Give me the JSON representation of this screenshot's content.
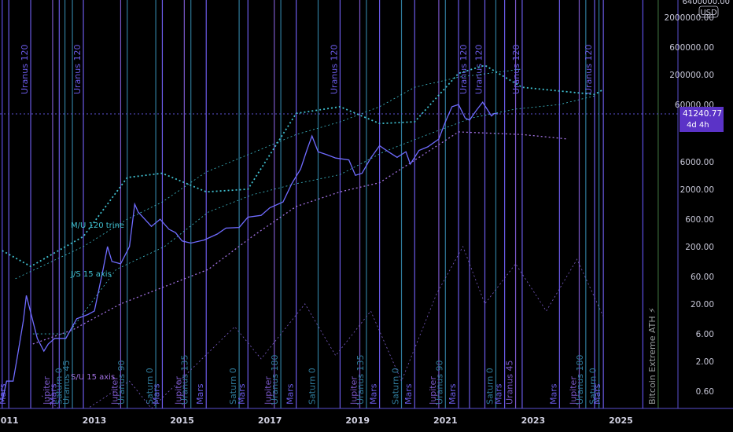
{
  "chart_data": {
    "type": "line",
    "title": "",
    "yscale": "log",
    "currency": "USD",
    "top_tick": "6400000.00",
    "ylim": [
      0.3,
      4000000
    ],
    "xlim": [
      2010.85,
      2026.3
    ],
    "x_ticks": [
      {
        "label": "2011",
        "x": 2011.0
      },
      {
        "label": "2013",
        "x": 2013.0
      },
      {
        "label": "2015",
        "x": 2015.0
      },
      {
        "label": "2017",
        "x": 2017.0
      },
      {
        "label": "2019",
        "x": 2019.0
      },
      {
        "label": "2021",
        "x": 2021.0
      },
      {
        "label": "2023",
        "x": 2023.0
      },
      {
        "label": "2025",
        "x": 2025.0
      }
    ],
    "y_ticks": [
      {
        "label": "2000000.00",
        "v": 2000000
      },
      {
        "label": "600000.00",
        "v": 600000
      },
      {
        "label": "200000.00",
        "v": 200000
      },
      {
        "label": "60000.00",
        "v": 60000
      },
      {
        "label": "6000.00",
        "v": 6000
      },
      {
        "label": "2000.00",
        "v": 2000
      },
      {
        "label": "600.00",
        "v": 600
      },
      {
        "label": "200.00",
        "v": 200
      },
      {
        "label": "60.00",
        "v": 60
      },
      {
        "label": "20.00",
        "v": 20
      },
      {
        "label": "6.00",
        "v": 6
      },
      {
        "label": "2.00",
        "v": 2
      },
      {
        "label": "0.60",
        "v": 0.6
      }
    ],
    "last_price": {
      "value": 41240.77,
      "label": "41240.77",
      "sublabel": "4d 4h"
    },
    "price": [
      [
        2010.9,
        0.4
      ],
      [
        2011.0,
        0.9
      ],
      [
        2011.15,
        0.9
      ],
      [
        2011.25,
        2.5
      ],
      [
        2011.38,
        10
      ],
      [
        2011.45,
        28
      ],
      [
        2011.55,
        14
      ],
      [
        2011.7,
        5
      ],
      [
        2011.85,
        3
      ],
      [
        2011.95,
        4
      ],
      [
        2012.1,
        5
      ],
      [
        2012.35,
        5
      ],
      [
        2012.6,
        11
      ],
      [
        2012.85,
        13
      ],
      [
        2013.0,
        15
      ],
      [
        2013.2,
        80
      ],
      [
        2013.3,
        200
      ],
      [
        2013.4,
        110
      ],
      [
        2013.6,
        100
      ],
      [
        2013.8,
        200
      ],
      [
        2013.92,
        1100
      ],
      [
        2014.0,
        800
      ],
      [
        2014.15,
        600
      ],
      [
        2014.3,
        450
      ],
      [
        2014.5,
        600
      ],
      [
        2014.7,
        400
      ],
      [
        2014.85,
        350
      ],
      [
        2015.0,
        250
      ],
      [
        2015.2,
        230
      ],
      [
        2015.5,
        260
      ],
      [
        2015.8,
        330
      ],
      [
        2016.0,
        420
      ],
      [
        2016.3,
        430
      ],
      [
        2016.5,
        650
      ],
      [
        2016.8,
        700
      ],
      [
        2017.0,
        950
      ],
      [
        2017.3,
        1200
      ],
      [
        2017.5,
        2500
      ],
      [
        2017.7,
        4500
      ],
      [
        2017.85,
        10000
      ],
      [
        2017.96,
        17000
      ],
      [
        2018.1,
        9000
      ],
      [
        2018.3,
        8000
      ],
      [
        2018.5,
        7000
      ],
      [
        2018.8,
        6500
      ],
      [
        2018.95,
        3500
      ],
      [
        2019.1,
        3800
      ],
      [
        2019.3,
        7000
      ],
      [
        2019.5,
        11500
      ],
      [
        2019.7,
        9000
      ],
      [
        2019.9,
        7200
      ],
      [
        2020.1,
        9000
      ],
      [
        2020.2,
        5500
      ],
      [
        2020.4,
        9500
      ],
      [
        2020.6,
        11000
      ],
      [
        2020.85,
        15000
      ],
      [
        2021.0,
        30000
      ],
      [
        2021.15,
        55000
      ],
      [
        2021.3,
        60000
      ],
      [
        2021.45,
        35000
      ],
      [
        2021.55,
        32000
      ],
      [
        2021.7,
        47000
      ],
      [
        2021.85,
        66000
      ],
      [
        2021.95,
        50000
      ],
      [
        2022.05,
        38000
      ],
      [
        2022.12,
        42000
      ],
      [
        2022.2,
        41240.77
      ]
    ],
    "vertical_lines": [
      {
        "x": 2010.9,
        "label": "",
        "color": "#5d4fe6"
      },
      {
        "x": 2011.05,
        "label": "Mars",
        "color": "#6a5ae6"
      },
      {
        "x": 2011.55,
        "label": "Uranus 120",
        "color": "#6a5ae6"
      },
      {
        "x": 2012.05,
        "label": "Jupiter",
        "color": "#7a57c8"
      },
      {
        "x": 2012.2,
        "label": "Mars",
        "color": "#6a5ae6"
      },
      {
        "x": 2012.33,
        "label": "Saturn 0",
        "color": "#2f7a9a"
      },
      {
        "x": 2012.5,
        "label": "Uranus 45",
        "color": "#2f7a9a"
      },
      {
        "x": 2012.75,
        "label": "Uranus 120",
        "color": "#6a5ae6"
      },
      {
        "x": 2013.6,
        "label": "Jupiter",
        "color": "#7a57c8"
      },
      {
        "x": 2013.75,
        "label": "Uranus 90",
        "color": "#2f7a9a"
      },
      {
        "x": 2014.4,
        "label": "Saturn 0",
        "color": "#2f7a9a"
      },
      {
        "x": 2014.55,
        "label": "Mars",
        "color": "#6a5ae6"
      },
      {
        "x": 2015.05,
        "label": "Jupiter",
        "color": "#7a57c8"
      },
      {
        "x": 2015.2,
        "label": "Uranus 135",
        "color": "#2f7a9a"
      },
      {
        "x": 2015.55,
        "label": "Mars",
        "color": "#6a5ae6"
      },
      {
        "x": 2016.3,
        "label": "Saturn 0",
        "color": "#2f7a9a"
      },
      {
        "x": 2016.5,
        "label": "Mars",
        "color": "#6a5ae6"
      },
      {
        "x": 2017.1,
        "label": "Jupiter",
        "color": "#7a57c8"
      },
      {
        "x": 2017.25,
        "label": "Uranus 180",
        "color": "#2f7a9a"
      },
      {
        "x": 2017.6,
        "label": "Mars",
        "color": "#6a5ae6"
      },
      {
        "x": 2018.1,
        "label": "Saturn 0",
        "color": "#2f7a9a"
      },
      {
        "x": 2018.6,
        "label": "Uranus 120",
        "color": "#6a5ae6"
      },
      {
        "x": 2019.05,
        "label": "Jupiter",
        "color": "#7a57c8"
      },
      {
        "x": 2019.2,
        "label": "Uranus 135",
        "color": "#2f7a9a"
      },
      {
        "x": 2019.5,
        "label": "Mars",
        "color": "#6a5ae6"
      },
      {
        "x": 2020.0,
        "label": "Saturn 0",
        "color": "#2f7a9a"
      },
      {
        "x": 2020.3,
        "label": "Mars",
        "color": "#6a5ae6"
      },
      {
        "x": 2020.85,
        "label": "Jupiter",
        "color": "#7a57c8"
      },
      {
        "x": 2021.0,
        "label": "Uranus 90",
        "color": "#2f7a9a"
      },
      {
        "x": 2021.3,
        "label": "Mars",
        "color": "#6a5ae6"
      },
      {
        "x": 2021.55,
        "label": "Uranus 120",
        "color": "#6a5ae6"
      },
      {
        "x": 2021.9,
        "label": "Uranus 120",
        "color": "#6a5ae6"
      },
      {
        "x": 2022.15,
        "label": "Saturn 0",
        "color": "#2f7a9a"
      },
      {
        "x": 2022.35,
        "label": "Mars",
        "color": "#6a5ae6"
      },
      {
        "x": 2022.6,
        "label": "Uranus 45",
        "color": "#7a57c8"
      },
      {
        "x": 2022.75,
        "label": "Uranus 120",
        "color": "#6a5ae6"
      },
      {
        "x": 2023.6,
        "label": "Mars",
        "color": "#6a5ae6"
      },
      {
        "x": 2024.05,
        "label": "Jupiter",
        "color": "#7a57c8"
      },
      {
        "x": 2024.2,
        "label": "Uranus 180",
        "color": "#2f7a9a"
      },
      {
        "x": 2024.4,
        "label": "Uranus 120",
        "color": "#6a5ae6"
      },
      {
        "x": 2024.5,
        "label": "Saturn 0",
        "color": "#2f7a9a"
      },
      {
        "x": 2024.6,
        "label": "Mars",
        "color": "#6a5ae6"
      },
      {
        "x": 2025.5,
        "label": "",
        "color": "#5d4fe6"
      },
      {
        "x": 2025.85,
        "label": "Bitcoin Extreme ATH ⚡",
        "color": "#3a6a3a"
      }
    ],
    "indicators": [
      {
        "name": "M/U 120 trine",
        "color": "#3fbfcf",
        "label_y": 290
      },
      {
        "name": "J/S 15 axis",
        "color": "#3fbfcf",
        "label_y": 352
      },
      {
        "name": "S/U 15 axis",
        "color": "#a070e0",
        "label_y": 483
      }
    ]
  }
}
